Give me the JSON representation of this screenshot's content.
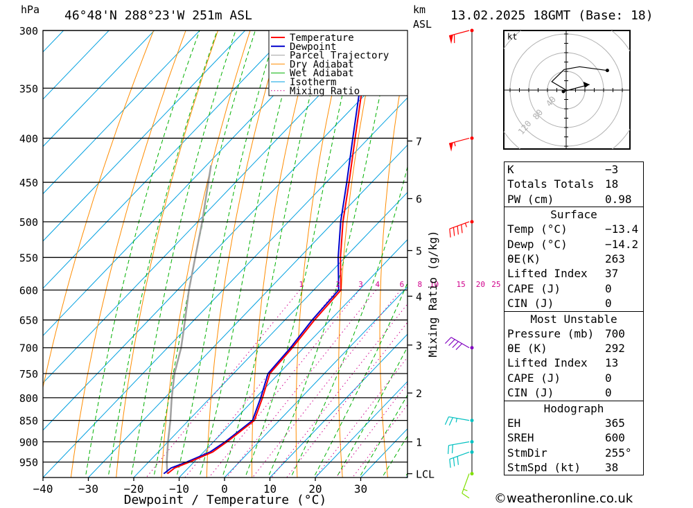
{
  "header": {
    "pressure_unit": "hPa",
    "location": "46°48'N  288°23'W  251m  ASL",
    "km_label": "km",
    "asl_label": "ASL",
    "datetime": "13.02.2025  18GMT  (Base: 18)"
  },
  "colors": {
    "temperature": "#ff0000",
    "dewpoint": "#0000cc",
    "parcel": "#a0a0a0",
    "dry_adiabat": "#ff8c00",
    "wet_adiabat": "#00b000",
    "isotherm": "#00a0e0",
    "mixing_ratio": "#d0008c",
    "wind_high": "#ff0000",
    "wind_mid": "#8000c0",
    "wind_low": "#00c0c0",
    "wind_surface": "#80e000"
  },
  "chart_data": {
    "type": "line",
    "title": "",
    "xlabel": "Dewpoint / Temperature (°C)",
    "ylabel": "hPa",
    "xlim": [
      -40,
      40
    ],
    "pressure_ticks": [
      300,
      350,
      400,
      450,
      500,
      550,
      600,
      650,
      700,
      750,
      800,
      850,
      900,
      950
    ],
    "temperature_ticks": [
      -40,
      -30,
      -20,
      -10,
      0,
      10,
      20,
      30
    ],
    "height_ticks_km": [
      {
        "label": "7",
        "p": 403
      },
      {
        "label": "6",
        "p": 470
      },
      {
        "label": "5",
        "p": 540
      },
      {
        "label": "4",
        "p": 610
      },
      {
        "label": "3",
        "p": 695
      },
      {
        "label": "2",
        "p": 790
      },
      {
        "label": "1",
        "p": 900
      },
      {
        "label": "LCL",
        "p": 980
      }
    ],
    "mixing_ratio_axis_label": "Mixing Ratio (g/kg)",
    "mixing_ratio_labels": [
      "1",
      "2",
      "3",
      "4",
      "6",
      "8",
      "10",
      "15",
      "20",
      "25"
    ],
    "legend": {
      "placement": "top-center",
      "entries": [
        "Temperature",
        "Dewpoint",
        "Parcel Trajectory",
        "Dry Adiabat",
        "Wet Adiabat",
        "Isotherm",
        "Mixing Ratio"
      ]
    },
    "series": [
      {
        "name": "Temperature",
        "points": [
          [
            980,
            -13.4
          ],
          [
            965,
            -13
          ],
          [
            950,
            -11
          ],
          [
            925,
            -8
          ],
          [
            900,
            -7
          ],
          [
            850,
            -5.5
          ],
          [
            800,
            -8.5
          ],
          [
            750,
            -12
          ],
          [
            700,
            -12.5
          ],
          [
            650,
            -13.5
          ],
          [
            600,
            -14
          ],
          [
            550,
            -21
          ],
          [
            500,
            -28
          ],
          [
            450,
            -35
          ],
          [
            400,
            -43
          ],
          [
            350,
            -52
          ],
          [
            300,
            -60
          ]
        ]
      },
      {
        "name": "Dewpoint",
        "points": [
          [
            980,
            -14.2
          ],
          [
            965,
            -13.8
          ],
          [
            950,
            -11.6
          ],
          [
            925,
            -8.6
          ],
          [
            900,
            -7.4
          ],
          [
            850,
            -5.9
          ],
          [
            800,
            -8.9
          ],
          [
            750,
            -12.4
          ],
          [
            700,
            -12.9
          ],
          [
            650,
            -14
          ],
          [
            600,
            -14.5
          ],
          [
            550,
            -21.5
          ],
          [
            500,
            -28.5
          ],
          [
            450,
            -35.5
          ],
          [
            400,
            -43.5
          ],
          [
            350,
            -52.5
          ],
          [
            300,
            -60.5
          ]
        ]
      },
      {
        "name": "Parcel Trajectory",
        "points": [
          [
            980,
            -13.4
          ],
          [
            950,
            -16
          ],
          [
            900,
            -20
          ],
          [
            850,
            -24
          ],
          [
            800,
            -28.5
          ],
          [
            750,
            -33
          ],
          [
            700,
            -37
          ],
          [
            650,
            -42
          ],
          [
            600,
            -47.5
          ],
          [
            550,
            -53
          ],
          [
            500,
            -59
          ],
          [
            450,
            -66
          ],
          [
            430,
            -69
          ]
        ]
      }
    ]
  },
  "winds": [
    {
      "p": 300,
      "speed_kt": 60,
      "dir_deg": 255,
      "color_key": "wind_high"
    },
    {
      "p": 400,
      "speed_kt": 55,
      "dir_deg": 255,
      "color_key": "wind_high"
    },
    {
      "p": 500,
      "speed_kt": 45,
      "dir_deg": 250,
      "color_key": "wind_high"
    },
    {
      "p": 700,
      "speed_kt": 40,
      "dir_deg": 300,
      "color_key": "wind_mid"
    },
    {
      "p": 850,
      "speed_kt": 25,
      "dir_deg": 280,
      "color_key": "wind_low"
    },
    {
      "p": 900,
      "speed_kt": 20,
      "dir_deg": 260,
      "color_key": "wind_low"
    },
    {
      "p": 925,
      "speed_kt": 30,
      "dir_deg": 250,
      "color_key": "wind_low"
    },
    {
      "p": 980,
      "speed_kt": 15,
      "dir_deg": 200,
      "color_key": "wind_surface"
    }
  ],
  "hodograph": {
    "unit_label": "kt",
    "ring_labels": [
      "40",
      "80",
      "120"
    ],
    "points_kt": [
      [
        0,
        0
      ],
      [
        -14,
        9
      ],
      [
        -2,
        22
      ],
      [
        13,
        25
      ],
      [
        40,
        21
      ]
    ],
    "storm_motion_kt": [
      25,
      6
    ]
  },
  "indices": {
    "general": [
      {
        "label": "K",
        "value": "-3"
      },
      {
        "label": "Totals Totals",
        "value": "18"
      },
      {
        "label": "PW (cm)",
        "value": "0.98"
      }
    ],
    "surface": {
      "title": "Surface",
      "rows": [
        {
          "label": "Temp (°C)",
          "value": "-13.4"
        },
        {
          "label": "Dewp (°C)",
          "value": "-14.2"
        },
        {
          "label": "θE(K)",
          "value": "263"
        },
        {
          "label": "Lifted Index",
          "value": "37"
        },
        {
          "label": "CAPE (J)",
          "value": "0"
        },
        {
          "label": "CIN (J)",
          "value": "0"
        }
      ]
    },
    "most_unstable": {
      "title": "Most Unstable",
      "rows": [
        {
          "label": "Pressure (mb)",
          "value": "700"
        },
        {
          "label": "θE (K)",
          "value": "292"
        },
        {
          "label": "Lifted Index",
          "value": "13"
        },
        {
          "label": "CAPE (J)",
          "value": "0"
        },
        {
          "label": "CIN (J)",
          "value": "0"
        }
      ]
    },
    "hodograph": {
      "title": "Hodograph",
      "rows": [
        {
          "label": "EH",
          "value": "365"
        },
        {
          "label": "SREH",
          "value": "600"
        },
        {
          "label": "StmDir",
          "value": "255°"
        },
        {
          "label": "StmSpd (kt)",
          "value": "38"
        }
      ]
    }
  },
  "copyright": "©weatheronline.co.uk"
}
